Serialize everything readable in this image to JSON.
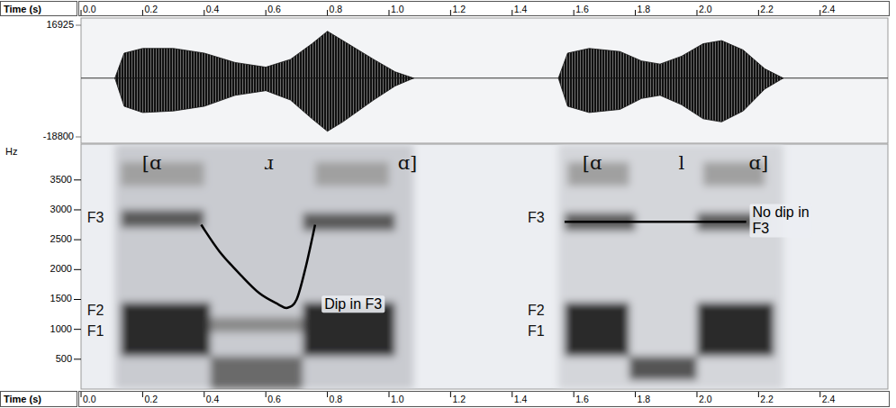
{
  "chart_data": {
    "type": "spectrogram",
    "x_label": "Time (s)",
    "xlim": [
      0,
      2.62
    ],
    "xticks": [
      {
        "value": 0,
        "label": "0.0"
      },
      0.2,
      0.4,
      0.6,
      0.8,
      {
        "value": 1,
        "label": "1.0"
      },
      1.2,
      1.4,
      1.6,
      1.8,
      {
        "value": 2,
        "label": "2.0"
      },
      2.2,
      2.4
    ],
    "waveform": {
      "ylim": [
        -18800,
        16925
      ],
      "yticks": [
        16925,
        -18800
      ],
      "x": [
        0.11,
        0.14,
        0.2,
        0.3,
        0.4,
        0.5,
        0.6,
        0.68,
        0.75,
        0.8,
        0.85,
        0.95,
        1.02,
        1.08,
        1.3,
        1.55,
        1.58,
        1.65,
        1.75,
        1.82,
        1.88,
        1.95,
        2.02,
        2.08,
        2.15,
        2.22,
        2.28
      ],
      "max": [
        0,
        8000,
        9500,
        9500,
        8000,
        5000,
        3500,
        6000,
        11000,
        15000,
        12000,
        6000,
        2000,
        0,
        null,
        0,
        8000,
        9500,
        8500,
        5500,
        4500,
        7000,
        11000,
        12000,
        9000,
        3000,
        0
      ],
      "min": [
        0,
        -9000,
        -11000,
        -10500,
        -9000,
        -5500,
        -4000,
        -7000,
        -13000,
        -17000,
        -14000,
        -7000,
        -2500,
        0,
        null,
        0,
        -9000,
        -11000,
        -10000,
        -6500,
        -5500,
        -8500,
        -13000,
        -14000,
        -10500,
        -3500,
        0
      ]
    },
    "y_label": "Hz",
    "ylim": [
      0,
      4100
    ],
    "yticks": [
      500,
      1000,
      1500,
      2000,
      2500,
      3000,
      3500
    ],
    "bands": [
      {
        "start": 0.11,
        "end": 1.08,
        "low": 0,
        "high": 4100,
        "color": "#c9cbd0"
      },
      {
        "start": 0.13,
        "end": 0.42,
        "low": 550,
        "high": 1450,
        "color": "#2b2b2b"
      },
      {
        "start": 0.72,
        "end": 1.02,
        "low": 550,
        "high": 1450,
        "color": "#2b2b2b"
      },
      {
        "start": 0.13,
        "end": 0.4,
        "low": 2700,
        "high": 3000,
        "color": "#5a5a5a"
      },
      {
        "start": 0.72,
        "end": 1.02,
        "low": 2650,
        "high": 2950,
        "color": "#5a5a5a"
      },
      {
        "start": 0.13,
        "end": 0.4,
        "low": 3400,
        "high": 3800,
        "color": "#a0a0a0"
      },
      {
        "start": 0.76,
        "end": 1.0,
        "low": 3400,
        "high": 3800,
        "color": "#a0a0a0"
      },
      {
        "start": 0.42,
        "end": 0.72,
        "low": 0,
        "high": 550,
        "color": "#6a6a6a"
      },
      {
        "start": 0.42,
        "end": 0.72,
        "low": 950,
        "high": 1200,
        "color": "#8a8a8a"
      },
      {
        "start": 1.55,
        "end": 2.28,
        "low": 0,
        "high": 4100,
        "color": "#d4d6da"
      },
      {
        "start": 1.57,
        "end": 1.78,
        "low": 550,
        "high": 1450,
        "color": "#2b2b2b"
      },
      {
        "start": 2.0,
        "end": 2.25,
        "low": 550,
        "high": 1450,
        "color": "#2b2b2b"
      },
      {
        "start": 1.57,
        "end": 1.8,
        "low": 2650,
        "high": 2950,
        "color": "#5a5a5a"
      },
      {
        "start": 2.0,
        "end": 2.22,
        "low": 2650,
        "high": 2950,
        "color": "#5a5a5a"
      },
      {
        "start": 1.78,
        "end": 2.0,
        "low": 150,
        "high": 550,
        "color": "#555555"
      },
      {
        "start": 1.58,
        "end": 1.78,
        "low": 3400,
        "high": 3800,
        "color": "#a0a0a0"
      },
      {
        "start": 2.02,
        "end": 2.22,
        "low": 3400,
        "high": 3800,
        "color": "#a0a0a0"
      }
    ],
    "segments": [
      {
        "label": "[ɑ",
        "x": 0.23
      },
      {
        "label": "ɹ",
        "x": 0.61
      },
      {
        "label": "ɑ]",
        "x": 1.06
      },
      {
        "label": "[ɑ",
        "x": 1.66
      },
      {
        "label": "l",
        "x": 1.95
      },
      {
        "label": "ɑ]",
        "x": 2.2
      }
    ],
    "series": [
      {
        "color": "#000000",
        "line_style": "solid",
        "x": [
          0.39,
          0.45,
          0.52,
          0.58,
          0.64,
          0.67,
          0.7,
          0.73,
          0.76
        ],
        "values": [
          2750,
          2300,
          1900,
          1600,
          1420,
          1360,
          1500,
          2050,
          2750
        ]
      },
      {
        "color": "#000000",
        "line_style": "solid",
        "x": [
          1.57,
          2.16
        ],
        "values": [
          2800,
          2800
        ]
      }
    ],
    "formant_labels": [
      {
        "label": "F3",
        "x": 0.02,
        "y": 2850
      },
      {
        "label": "F2",
        "x": 0.02,
        "y": 1300
      },
      {
        "label": "F1",
        "x": 0.02,
        "y": 950
      },
      {
        "label": "F3",
        "x": 1.45,
        "y": 2850
      },
      {
        "label": "F2",
        "x": 1.45,
        "y": 1300
      },
      {
        "label": "F1",
        "x": 1.45,
        "y": 950
      }
    ],
    "annotations": [
      {
        "text": "Dip in F3",
        "x": 0.79,
        "y": 1400
      },
      {
        "text": "No dip in F3",
        "x": 2.18,
        "y": 2800
      }
    ]
  }
}
